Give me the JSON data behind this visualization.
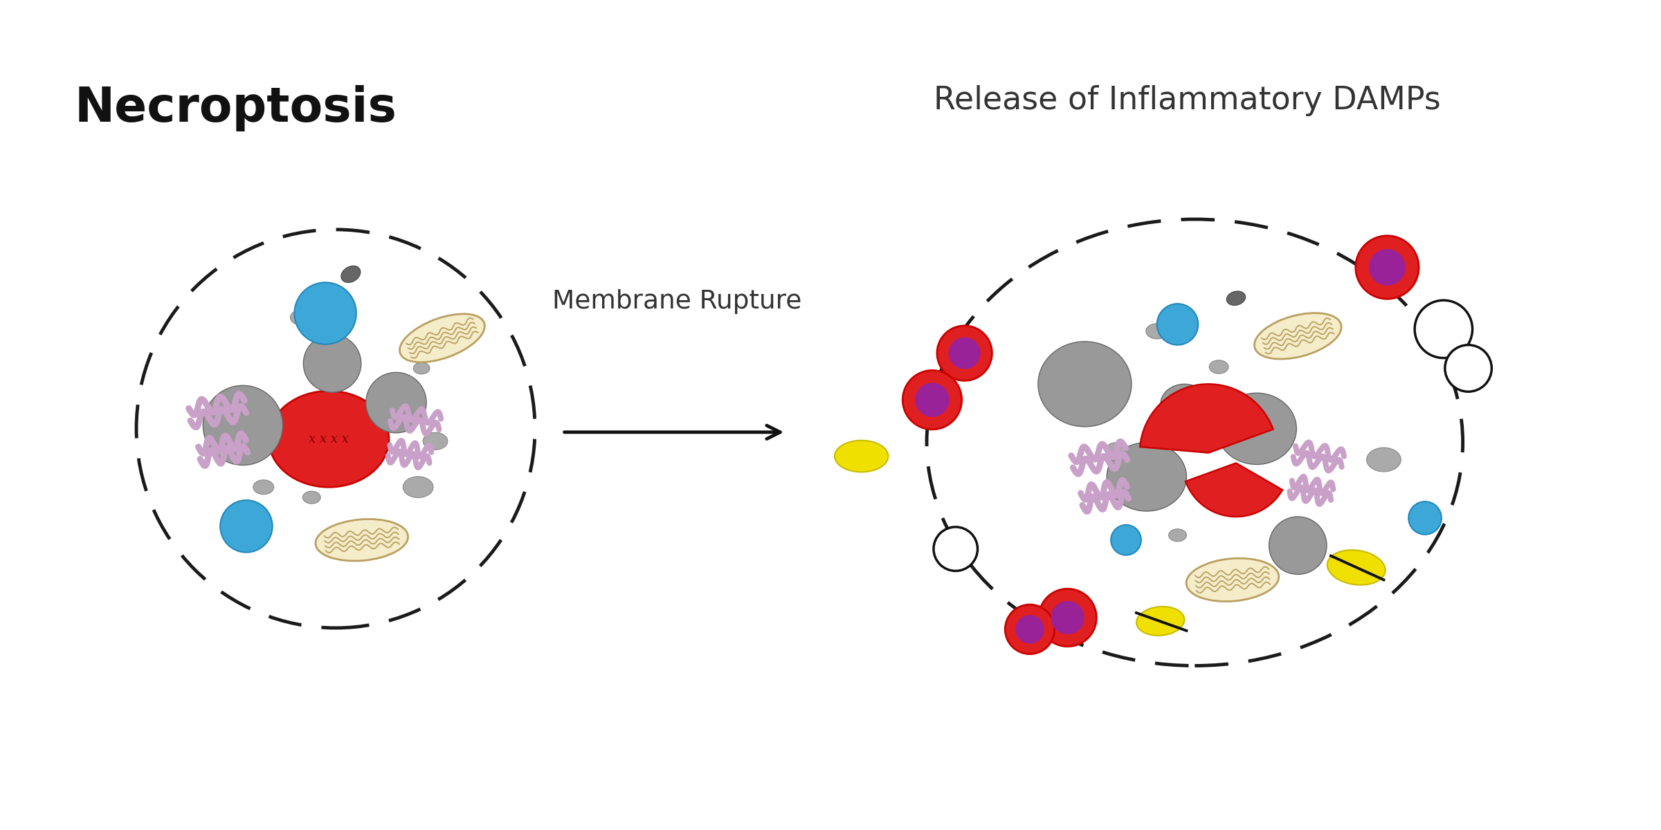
{
  "title_left": "Necroptosis",
  "title_right": "Release of Inflammatory DAMPs",
  "label_membrane": "Membrane Rupture",
  "bg_color": "#ffffff",
  "colors": {
    "gray_light": "#999999",
    "gray_med": "#888888",
    "gray_dark": "#666666",
    "blue": "#3da8d8",
    "red": "#e02020",
    "red_dark": "#cc0000",
    "purple": "#992299",
    "lavender": "#c8a0c8",
    "lavender_dark": "#b080b0",
    "mito_body": "#e8d8a0",
    "mito_fill": "#f5ecca",
    "mito_line": "#b8a060",
    "yellow": "#f0e000",
    "yellow_dark": "#c8bc00",
    "dark": "#1a1a1a",
    "white": "#ffffff",
    "cell_edge": "#1a1a1a"
  }
}
